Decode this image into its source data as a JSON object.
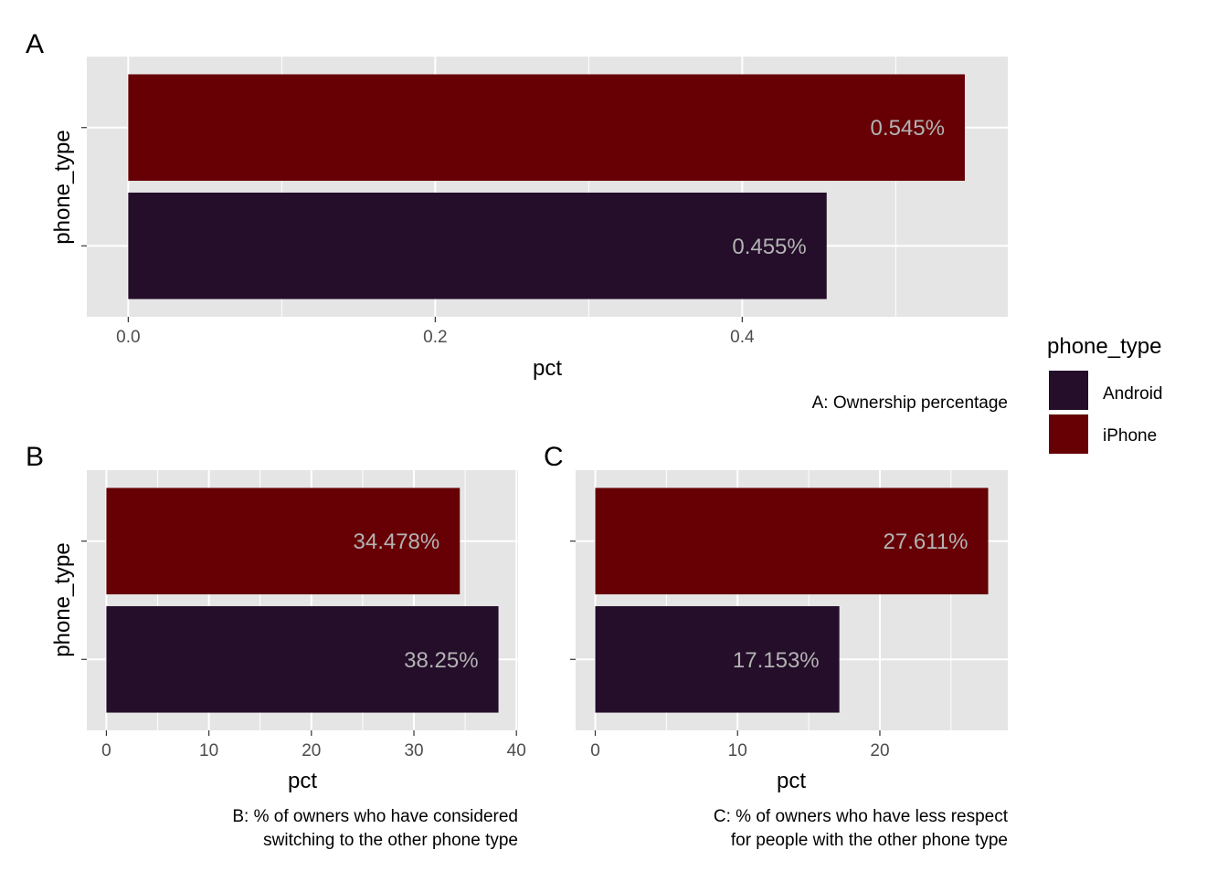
{
  "chart_data": [
    {
      "type": "bar",
      "orientation": "horizontal",
      "tag": "A",
      "categories": [
        "Android",
        "iPhone"
      ],
      "values": [
        0.455,
        0.545
      ],
      "value_labels": [
        "0.455%",
        "0.545%"
      ],
      "xlabel": "pct",
      "ylabel": "phone_type",
      "xlim": [
        -0.027,
        0.573
      ],
      "xticks": [
        0.0,
        0.2,
        0.4
      ],
      "xtick_labels": [
        "0.0",
        "0.2",
        "0.4"
      ],
      "caption": [
        "A: Ownership percentage"
      ],
      "caption_align": "right",
      "grid": true
    },
    {
      "type": "bar",
      "orientation": "horizontal",
      "tag": "B",
      "categories": [
        "Android",
        "iPhone"
      ],
      "values": [
        38.25,
        34.478
      ],
      "value_labels": [
        "38.25%",
        "34.478%"
      ],
      "xlabel": "pct",
      "ylabel": "phone_type",
      "xlim": [
        -1.91,
        40.16
      ],
      "xticks": [
        0,
        10,
        20,
        30,
        40
      ],
      "xtick_labels": [
        "0",
        "10",
        "20",
        "30",
        "40"
      ],
      "caption": [
        "B: % of owners who have considered",
        "switching to the other phone type"
      ],
      "caption_align": "right",
      "grid": true
    },
    {
      "type": "bar",
      "orientation": "horizontal",
      "tag": "C",
      "categories": [
        "Android",
        "iPhone"
      ],
      "values": [
        17.153,
        27.611
      ],
      "value_labels": [
        "17.153%",
        "27.611%"
      ],
      "xlabel": "pct",
      "ylabel": "",
      "xlim": [
        -1.38,
        28.99
      ],
      "xticks": [
        0,
        10,
        20
      ],
      "xtick_labels": [
        "0",
        "10",
        "20"
      ],
      "caption": [
        "C: % of owners who have less respect",
        "for people with the other phone type"
      ],
      "caption_align": "right",
      "grid": true
    }
  ],
  "legend": {
    "title": "phone_type",
    "position": "right",
    "items": [
      {
        "label": "Android",
        "color": "#240e2a"
      },
      {
        "label": "iPhone",
        "color": "#660005"
      }
    ]
  },
  "colors": {
    "panel_background": "#e5e5e5",
    "grid": "#ffffff",
    "android": "#240e2a",
    "iphone": "#660005",
    "bar_label": "#b3b3b3"
  }
}
